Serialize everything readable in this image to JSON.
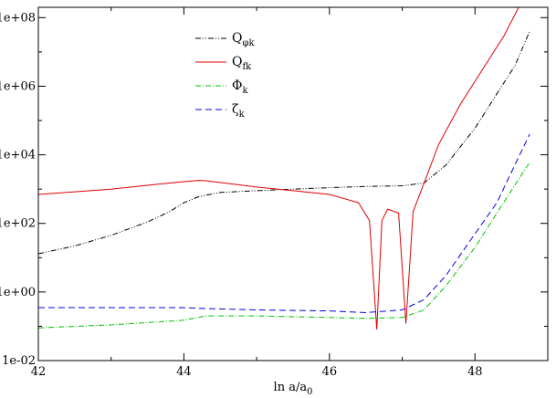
{
  "chart_data": {
    "type": "line",
    "title": "",
    "xlabel": {
      "main": "ln a/a",
      "sub": "0"
    },
    "ylabel": "",
    "xscale": "linear",
    "yscale": "log",
    "xlim": [
      42,
      49
    ],
    "ylim": [
      0.01,
      200000000
    ],
    "x_ticks": [
      {
        "value": 42,
        "label": "42"
      },
      {
        "value": 44,
        "label": "44"
      },
      {
        "value": 46,
        "label": "46"
      },
      {
        "value": 48,
        "label": "48"
      }
    ],
    "y_ticks": [
      {
        "value": 0.01,
        "label": "1e-02"
      },
      {
        "value": 1,
        "label": "1e+00"
      },
      {
        "value": 100,
        "label": "1e+02"
      },
      {
        "value": 10000,
        "label": "1e+04"
      },
      {
        "value": 1000000,
        "label": "1e+06"
      },
      {
        "value": 100000000,
        "label": "1e+08"
      }
    ],
    "grid": false,
    "legend_position": "upper-left-inside",
    "series": [
      {
        "name": "Q_φk",
        "legend": {
          "main": "Q",
          "sub": "φk"
        },
        "color": "#000000",
        "dash": "6,2,1,2,1,2",
        "style": "dash-dot-dot",
        "x": [
          42.0,
          42.5,
          43.0,
          43.5,
          43.8,
          44.0,
          44.2,
          44.5,
          45.0,
          45.5,
          46.0,
          46.5,
          47.0,
          47.3,
          47.6,
          48.0,
          48.3,
          48.55,
          48.75
        ],
        "y": [
          13,
          22,
          45,
          110,
          220,
          400,
          600,
          800,
          900,
          1000,
          1100,
          1200,
          1250,
          1500,
          5000,
          60000,
          600000,
          4000000,
          40000000
        ]
      },
      {
        "name": "Q_fk",
        "legend": {
          "main": "Q",
          "sub": "fk"
        },
        "color": "#e00000",
        "dash": "",
        "style": "solid",
        "x": [
          42.0,
          43.0,
          43.8,
          44.2,
          44.3,
          45.0,
          45.5,
          46.0,
          46.4,
          46.55,
          46.65,
          46.72,
          46.8,
          46.95,
          47.05,
          47.15,
          47.3,
          47.5,
          47.8,
          48.1,
          48.4,
          48.6
        ],
        "y": [
          700,
          1000,
          1500,
          1800,
          1750,
          1150,
          900,
          700,
          400,
          120,
          0.08,
          120,
          260,
          200,
          0.12,
          220,
          1500,
          20000,
          300000,
          3000000,
          30000000,
          200000000
        ]
      },
      {
        "name": "Φ_k",
        "legend": {
          "main": "Φ",
          "sub": "k"
        },
        "color": "#00c000",
        "dash": "6,2,1,2",
        "style": "dash-dot",
        "x": [
          42.0,
          43.0,
          44.0,
          44.3,
          45.0,
          46.0,
          46.5,
          47.0,
          47.3,
          47.6,
          48.0,
          48.3,
          48.75
        ],
        "y": [
          0.09,
          0.11,
          0.15,
          0.2,
          0.2,
          0.18,
          0.17,
          0.18,
          0.3,
          1.5,
          20,
          200,
          6000
        ]
      },
      {
        "name": "ζ_k",
        "legend": {
          "main": "ζ",
          "sub": "k"
        },
        "color": "#0000e0",
        "dash": "7,4",
        "style": "dashed",
        "x": [
          42.0,
          43.0,
          44.0,
          44.3,
          45.0,
          46.0,
          46.5,
          47.0,
          47.3,
          47.6,
          48.0,
          48.3,
          48.75
        ],
        "y": [
          0.35,
          0.35,
          0.35,
          0.33,
          0.3,
          0.28,
          0.25,
          0.3,
          0.6,
          3,
          50,
          400,
          40000
        ]
      }
    ]
  }
}
